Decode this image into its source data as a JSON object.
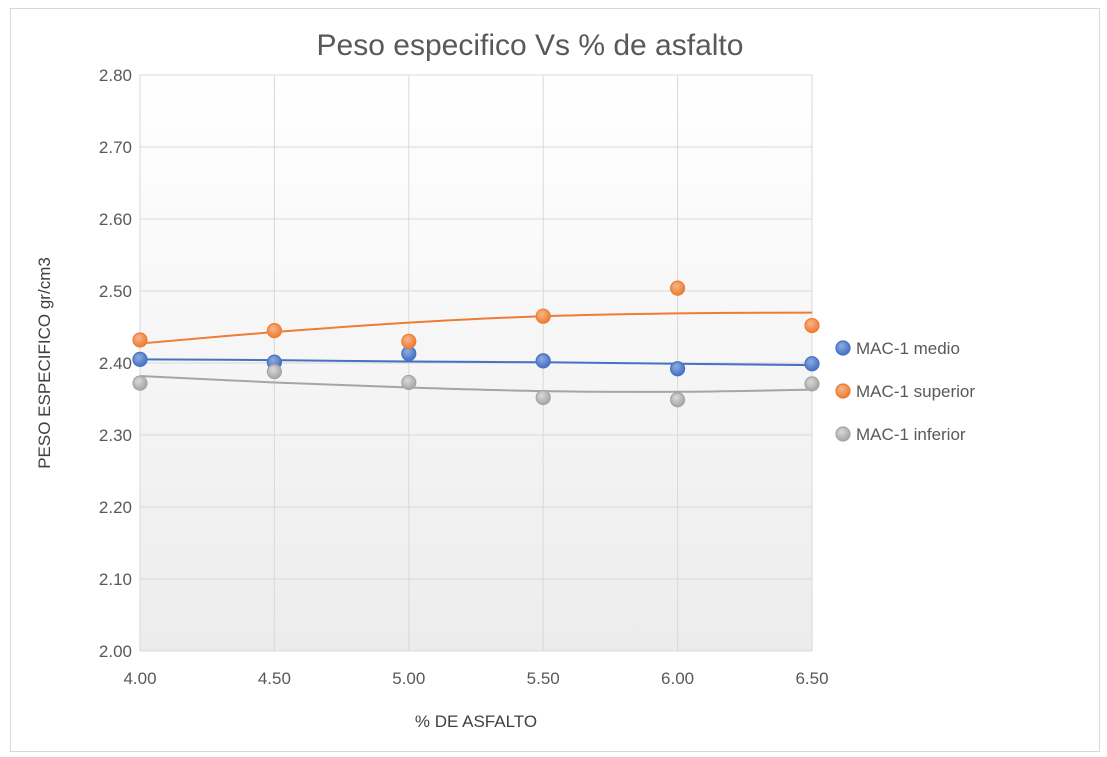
{
  "chart_data": {
    "type": "scatter",
    "title": "Peso especifico Vs % de asfalto",
    "xlabel": "% DE ASFALTO",
    "ylabel": "PESO ESPECIFICO gr/cm3",
    "xlim": [
      4.0,
      6.5
    ],
    "ylim": [
      2.0,
      2.8
    ],
    "x_ticks": [
      4.0,
      4.5,
      5.0,
      5.5,
      6.0,
      6.5
    ],
    "x_tick_labels": [
      "4.00",
      "4.50",
      "5.00",
      "5.50",
      "6.00",
      "6.50"
    ],
    "y_ticks": [
      2.0,
      2.1,
      2.2,
      2.3,
      2.4,
      2.5,
      2.6,
      2.7,
      2.8
    ],
    "y_tick_labels": [
      "2.00",
      "2.10",
      "2.20",
      "2.30",
      "2.40",
      "2.50",
      "2.60",
      "2.70",
      "2.80"
    ],
    "grid": true,
    "legend_position": "right",
    "x": [
      4.0,
      4.5,
      5.0,
      5.5,
      6.0,
      6.5
    ],
    "series": [
      {
        "name": "MAC-1 medio",
        "color": "#4472c4",
        "values": [
          2.405,
          2.401,
          2.413,
          2.403,
          2.392,
          2.399
        ],
        "trend": [
          2.405,
          2.404,
          2.402,
          2.401,
          2.399,
          2.397
        ]
      },
      {
        "name": "MAC-1 superior",
        "color": "#ed7d31",
        "values": [
          2.432,
          2.445,
          2.43,
          2.465,
          2.504,
          2.452
        ],
        "trend": [
          2.427,
          2.443,
          2.456,
          2.465,
          2.469,
          2.47
        ]
      },
      {
        "name": "MAC-1 inferior",
        "color": "#a5a5a5",
        "values": [
          2.372,
          2.388,
          2.373,
          2.352,
          2.349,
          2.371
        ],
        "trend": [
          2.382,
          2.373,
          2.366,
          2.361,
          2.36,
          2.363
        ]
      }
    ]
  }
}
